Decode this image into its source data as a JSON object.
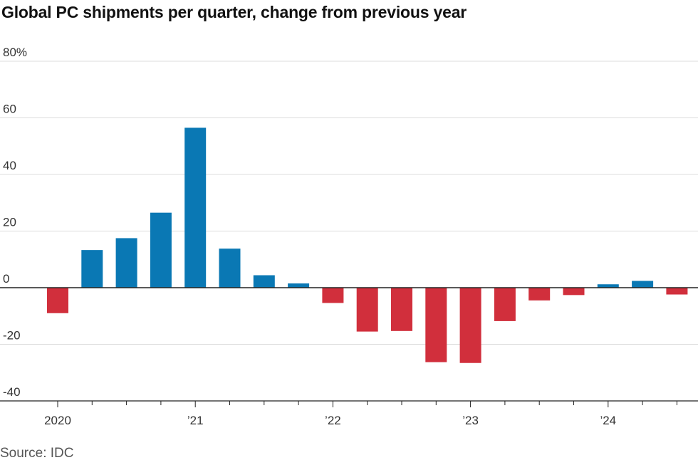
{
  "title": "Global PC shipments per quarter, change from previous year",
  "source": "Source: IDC",
  "colors": {
    "positive": "#0a78b4",
    "negative": "#d12f3c",
    "grid": "#dcdcdc",
    "axis": "#222222"
  },
  "chart_data": {
    "type": "bar",
    "title": "Global PC shipments per quarter, change from previous year",
    "xlabel": "",
    "ylabel": "",
    "unit": "%",
    "ylim": [
      -40,
      80
    ],
    "yticks": [
      80,
      60,
      40,
      20,
      0,
      -20,
      -40
    ],
    "ytick_labels": [
      "80%",
      "60",
      "40",
      "20",
      "0",
      "-20",
      "-40"
    ],
    "grid": true,
    "x_labels": [
      {
        "quarter": "2020 Q1",
        "label": "2020"
      },
      {
        "quarter": "2021 Q1",
        "label": "’21"
      },
      {
        "quarter": "2022 Q1",
        "label": "’22"
      },
      {
        "quarter": "2023 Q1",
        "label": "’23"
      },
      {
        "quarter": "2024 Q1",
        "label": "’24"
      }
    ],
    "categories": [
      "2020 Q1",
      "2020 Q2",
      "2020 Q3",
      "2020 Q4",
      "2021 Q1",
      "2021 Q2",
      "2021 Q3",
      "2021 Q4",
      "2022 Q1",
      "2022 Q2",
      "2022 Q3",
      "2022 Q4",
      "2023 Q1",
      "2023 Q2",
      "2023 Q3",
      "2023 Q4",
      "2024 Q1",
      "2024 Q2",
      "2024 Q3"
    ],
    "values": [
      -9,
      13.3,
      17.5,
      26.5,
      56.5,
      13.8,
      4.4,
      1.5,
      -5.4,
      -15.5,
      -15.3,
      -26.3,
      -26.6,
      -11.8,
      -4.5,
      -2.6,
      1.2,
      2.4,
      -2.4
    ]
  }
}
